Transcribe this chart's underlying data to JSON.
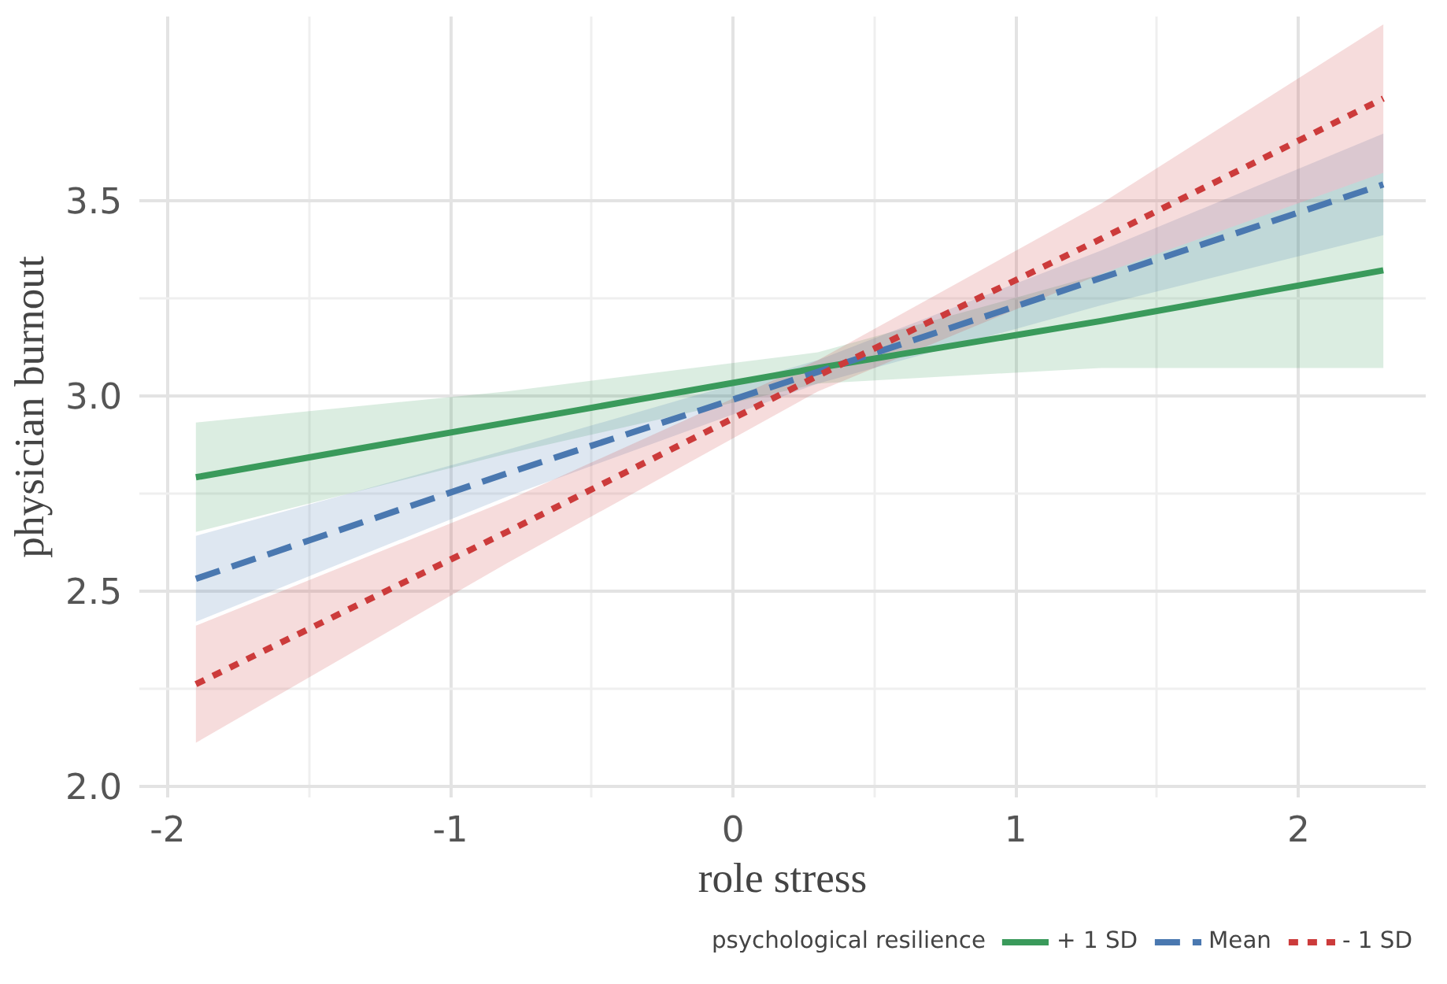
{
  "chart_data": {
    "type": "line",
    "xlabel": "role stress",
    "ylabel": "physician burnout",
    "legend_title": "psychological resilience",
    "legend": "bottom",
    "grid": true,
    "xlim": [
      -2.1,
      2.45
    ],
    "ylim": [
      1.97,
      3.97
    ],
    "xticks": [
      -2,
      -1,
      0,
      1,
      2
    ],
    "yticks": [
      {
        "value": 2.0,
        "label": "2.0"
      },
      {
        "value": 2.5,
        "label": "2.5"
      },
      {
        "value": 3.0,
        "label": "3.0"
      },
      {
        "value": 3.5,
        "label": "3.5"
      }
    ],
    "x": [
      -1.9,
      -0.8,
      0.3,
      1.3,
      2.3
    ],
    "series": [
      {
        "name": "+ 1 SD",
        "color": "#3a9a5b",
        "line_style": "solid",
        "values": [
          2.79,
          2.93,
          3.07,
          3.19,
          3.32
        ],
        "lower": [
          2.65,
          2.85,
          3.03,
          3.07,
          3.07
        ],
        "upper": [
          2.93,
          3.01,
          3.11,
          3.31,
          3.57
        ]
      },
      {
        "name": "Mean",
        "color": "#4a78b0",
        "line_style": "dashed",
        "values": [
          2.53,
          2.8,
          3.06,
          3.3,
          3.54
        ],
        "lower": [
          2.42,
          2.74,
          3.03,
          3.23,
          3.41
        ],
        "upper": [
          2.64,
          2.86,
          3.09,
          3.37,
          3.67
        ]
      },
      {
        "name": "- 1 SD",
        "color": "#cc3b3b",
        "line_style": "dotted",
        "values": [
          2.26,
          2.65,
          3.05,
          3.4,
          3.76
        ],
        "lower": [
          2.11,
          2.57,
          3.01,
          3.31,
          3.57
        ],
        "upper": [
          2.41,
          2.73,
          3.09,
          3.49,
          3.95
        ]
      }
    ]
  }
}
